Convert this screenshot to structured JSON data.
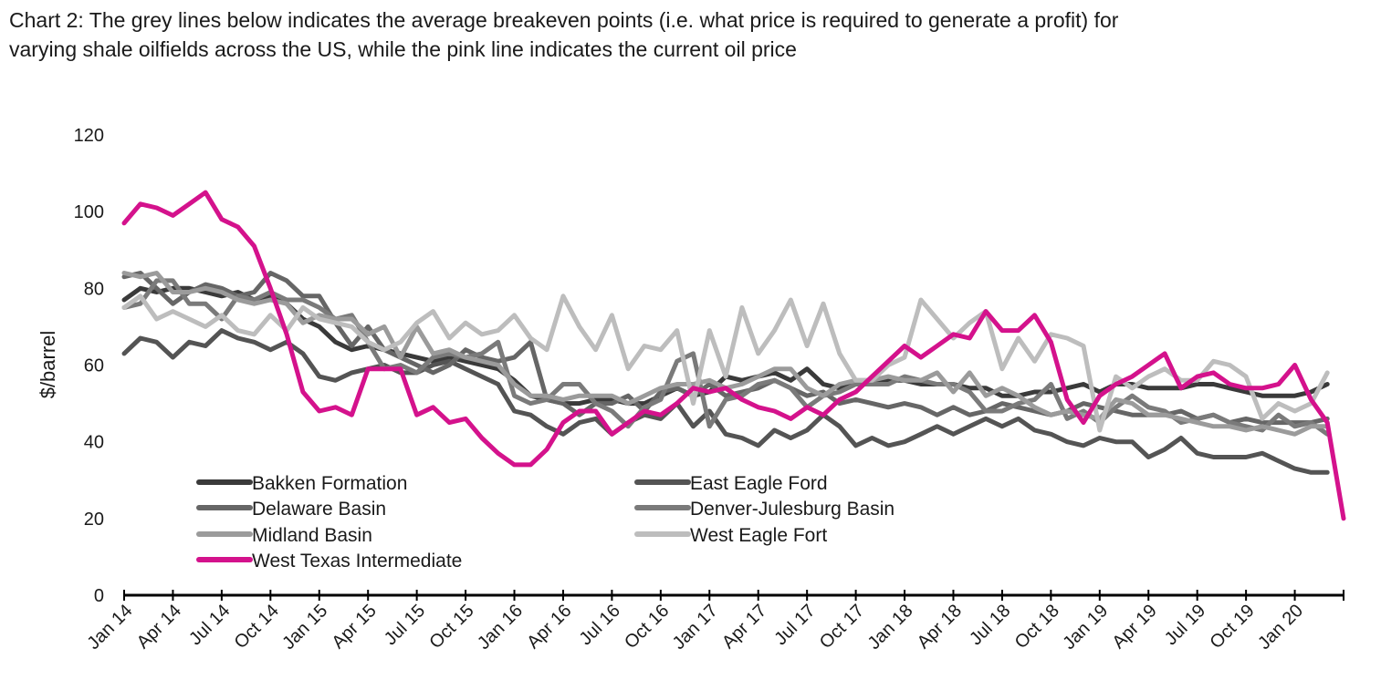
{
  "chart_data": {
    "type": "line",
    "title": "Chart 2: The grey lines below indicates the average breakeven points (i.e. what price is required to generate a profit) for varying shale oilfields across the US, while the pink line indicates the current oil price",
    "ylabel": "$/barrel",
    "xlabel": "",
    "ylim": [
      0,
      120
    ],
    "yticks": [
      0,
      20,
      40,
      60,
      80,
      100,
      120
    ],
    "grid": false,
    "legend_position": "bottom-left",
    "x_tick_labels": [
      "Jan 14",
      "Apr 14",
      "Jul 14",
      "Oct 14",
      "Jan 15",
      "Apr 15",
      "Jul 15",
      "Oct 15",
      "Jan 16",
      "Apr 16",
      "Jul 16",
      "Oct 16",
      "Jan 17",
      "Apr 17",
      "Jul 17",
      "Oct 17",
      "Jan 18",
      "Apr 18",
      "Jul 18",
      "Oct 18",
      "Jan 19",
      "Apr 19",
      "Jul 19",
      "Oct 19",
      "Jan 20"
    ],
    "x_tick_month_index": [
      0,
      3,
      6,
      9,
      12,
      15,
      18,
      21,
      24,
      27,
      30,
      33,
      36,
      39,
      42,
      45,
      48,
      51,
      54,
      57,
      60,
      63,
      66,
      69,
      72
    ],
    "x_domain_months": [
      0,
      75
    ],
    "series": [
      {
        "name": "Bakken Formation",
        "color": "#3a3a3a",
        "values": [
          77,
          80,
          79,
          80,
          80,
          79,
          78,
          79,
          77,
          78,
          76,
          72,
          70,
          66,
          64,
          65,
          64,
          63,
          62,
          61,
          62,
          61,
          60,
          59,
          56,
          52,
          51,
          50,
          50,
          51,
          51,
          50,
          50,
          52,
          54,
          52,
          53,
          57,
          56,
          57,
          58,
          56,
          59,
          55,
          54,
          55,
          55,
          56,
          56,
          55,
          55,
          55,
          54,
          54,
          52,
          52,
          53,
          53,
          54,
          55,
          53,
          55,
          55,
          54,
          54,
          54,
          55,
          55,
          54,
          53,
          52,
          52,
          52,
          53,
          55
        ]
      },
      {
        "name": "East Eagle Ford",
        "color": "#545454",
        "values": [
          63,
          67,
          66,
          62,
          66,
          65,
          69,
          67,
          66,
          64,
          66,
          63,
          57,
          56,
          58,
          59,
          60,
          58,
          58,
          60,
          61,
          59,
          57,
          55,
          48,
          47,
          44,
          42,
          45,
          46,
          42,
          45,
          47,
          46,
          50,
          44,
          48,
          42,
          41,
          39,
          43,
          41,
          43,
          47,
          44,
          39,
          41,
          39,
          40,
          42,
          44,
          42,
          44,
          46,
          44,
          46,
          43,
          42,
          40,
          39,
          41,
          40,
          40,
          36,
          38,
          41,
          37,
          36,
          36,
          36,
          37,
          35,
          33,
          32,
          32
        ]
      },
      {
        "name": "Delaware Basin",
        "color": "#666666",
        "values": [
          83,
          84,
          80,
          76,
          79,
          81,
          80,
          78,
          79,
          84,
          82,
          78,
          78,
          71,
          65,
          70,
          64,
          62,
          60,
          58,
          60,
          64,
          62,
          61,
          62,
          66,
          51,
          50,
          47,
          50,
          50,
          52,
          48,
          53,
          54,
          52,
          55,
          52,
          53,
          54,
          56,
          54,
          52,
          53,
          50,
          51,
          50,
          49,
          50,
          49,
          47,
          49,
          47,
          48,
          50,
          49,
          48,
          47,
          48,
          50,
          49,
          48,
          47,
          47,
          47,
          48,
          46,
          47,
          45,
          46,
          45,
          45,
          45,
          45,
          46
        ]
      },
      {
        "name": "Denver-Julesburg Basin",
        "color": "#7a7a7a",
        "values": [
          75,
          76,
          82,
          82,
          76,
          76,
          72,
          78,
          77,
          79,
          77,
          77,
          75,
          72,
          73,
          66,
          59,
          60,
          58,
          62,
          63,
          62,
          63,
          66,
          52,
          50,
          51,
          55,
          55,
          50,
          48,
          44,
          49,
          51,
          61,
          63,
          44,
          51,
          52,
          55,
          56,
          54,
          49,
          52,
          53,
          55,
          55,
          55,
          57,
          56,
          55,
          55,
          53,
          48,
          48,
          50,
          51,
          55,
          46,
          48,
          45,
          49,
          52,
          49,
          48,
          45,
          46,
          47,
          45,
          44,
          43,
          47,
          44,
          45,
          42
        ]
      },
      {
        "name": "Midland Basin",
        "color": "#9b9b9b",
        "values": [
          84,
          83,
          84,
          79,
          79,
          80,
          79,
          77,
          76,
          77,
          76,
          71,
          73,
          72,
          72,
          68,
          70,
          62,
          70,
          63,
          64,
          62,
          61,
          60,
          55,
          52,
          52,
          51,
          52,
          52,
          52,
          50,
          52,
          54,
          55,
          55,
          56,
          54,
          55,
          57,
          59,
          59,
          54,
          52,
          55,
          56,
          56,
          57,
          56,
          56,
          58,
          53,
          58,
          52,
          54,
          52,
          49,
          47,
          48,
          47,
          46,
          51,
          50,
          47,
          47,
          46,
          45,
          44,
          44,
          43,
          44,
          43,
          42,
          44,
          44
        ]
      },
      {
        "name": "West Eagle Fort",
        "color": "#bdbdbd",
        "values": [
          75,
          78,
          72,
          74,
          72,
          70,
          73,
          69,
          68,
          73,
          69,
          75,
          72,
          71,
          70,
          66,
          64,
          66,
          71,
          74,
          67,
          71,
          68,
          69,
          73,
          67,
          64,
          78,
          70,
          64,
          73,
          59,
          65,
          64,
          69,
          50,
          69,
          57,
          75,
          63,
          69,
          77,
          65,
          76,
          63,
          56,
          56,
          60,
          62,
          77,
          72,
          67,
          71,
          74,
          59,
          67,
          61,
          68,
          67,
          65,
          43,
          57,
          54,
          57,
          59,
          56,
          56,
          61,
          60,
          57,
          46,
          50,
          48,
          50,
          58
        ]
      },
      {
        "name": "West Texas Intermediate",
        "color": "#d4128c",
        "values": [
          97,
          102,
          101,
          99,
          102,
          105,
          98,
          96,
          91,
          80,
          68,
          53,
          48,
          49,
          47,
          59,
          59,
          59,
          47,
          49,
          45,
          46,
          41,
          37,
          34,
          34,
          38,
          45,
          48,
          48,
          42,
          45,
          48,
          47,
          50,
          54,
          53,
          54,
          51,
          49,
          48,
          46,
          49,
          47,
          51,
          53,
          57,
          61,
          65,
          62,
          65,
          68,
          67,
          74,
          69,
          69,
          73,
          66,
          51,
          45,
          52,
          55,
          57,
          60,
          63,
          54,
          57,
          58,
          55,
          54,
          54,
          55,
          60,
          51,
          45,
          20
        ]
      }
    ]
  }
}
